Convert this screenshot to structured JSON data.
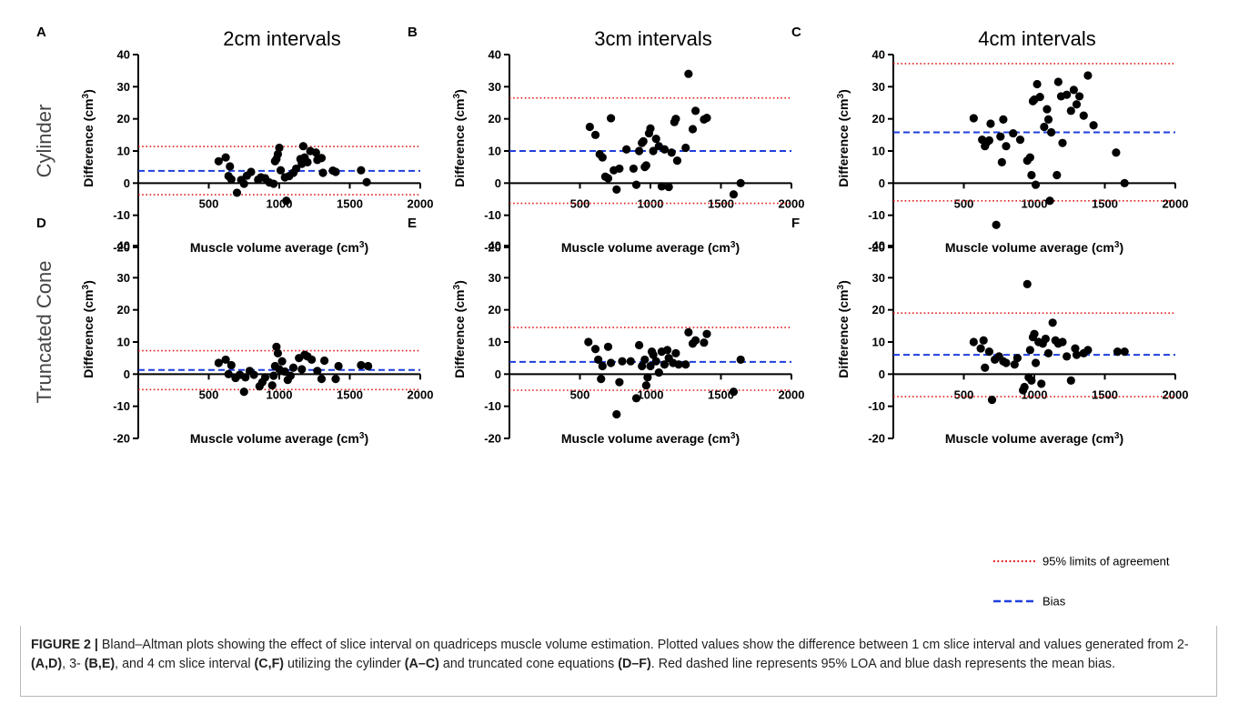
{
  "figure": {
    "column_titles": [
      "2cm intervals",
      "3cm intervals",
      "4cm intervals"
    ],
    "row_titles": [
      "Cylinder",
      "Truncated Cone"
    ],
    "legend": [
      {
        "label": "95% limits of agreement",
        "color": "#e02020",
        "style": "dotted"
      },
      {
        "label": "Bias",
        "color": "#1f3fdc",
        "style": "dashed"
      }
    ],
    "caption": {
      "label": "FIGURE 2 |",
      "parts": [
        {
          "t": " Bland–Altman plots showing the effect of slice interval on quadriceps muscle volume estimation. Plotted values show the difference between 1 cm slice interval and values generated from 2- ",
          "b": false
        },
        {
          "t": "(A,D)",
          "b": true
        },
        {
          "t": ", 3- ",
          "b": false
        },
        {
          "t": "(B,E)",
          "b": true
        },
        {
          "t": ", and 4 cm slice interval ",
          "b": false
        },
        {
          "t": "(C,F)",
          "b": true
        },
        {
          "t": " utilizing the cylinder ",
          "b": false
        },
        {
          "t": "(A–C)",
          "b": true
        },
        {
          "t": " and truncated cone equations ",
          "b": false
        },
        {
          "t": "(D–F)",
          "b": true
        },
        {
          "t": ". Red dashed line represents 95% LOA and blue dash represents the mean bias.",
          "b": false
        }
      ]
    }
  },
  "chart_data": [
    {
      "panel": "A",
      "type": "scatter",
      "xlabel": "Muscle volume average (cm",
      "xlabel_sup": "3",
      "xlabel_end": ")",
      "ylabel": "Difference (cm",
      "ylabel_sup": "3",
      "ylabel_end": ")",
      "xlim": [
        0,
        2000
      ],
      "ylim": [
        -20,
        40
      ],
      "xticks": [
        500,
        1000,
        1500,
        2000
      ],
      "yticks": [
        -20,
        -10,
        0,
        10,
        20,
        30,
        40
      ],
      "bias": 3.8,
      "loa_upper": 11.4,
      "loa_lower": -3.6,
      "points": [
        [
          570,
          6.8
        ],
        [
          620,
          8
        ],
        [
          640,
          2.2
        ],
        [
          650,
          5.2
        ],
        [
          660,
          1.2
        ],
        [
          700,
          -3
        ],
        [
          730,
          1
        ],
        [
          750,
          -0.2
        ],
        [
          770,
          2.3
        ],
        [
          800,
          3.5
        ],
        [
          850,
          1.1
        ],
        [
          870,
          1.8
        ],
        [
          900,
          1.5
        ],
        [
          930,
          0.2
        ],
        [
          960,
          -0.2
        ],
        [
          970,
          6.8
        ],
        [
          980,
          7.5
        ],
        [
          990,
          9
        ],
        [
          1000,
          11
        ],
        [
          1010,
          4
        ],
        [
          1040,
          1.8
        ],
        [
          1050,
          -5.5
        ],
        [
          1070,
          2.2
        ],
        [
          1100,
          3.2
        ],
        [
          1120,
          4.5
        ],
        [
          1150,
          7.5
        ],
        [
          1160,
          6
        ],
        [
          1170,
          11.5
        ],
        [
          1180,
          8
        ],
        [
          1200,
          6.5
        ],
        [
          1220,
          10
        ],
        [
          1260,
          9.5
        ],
        [
          1270,
          7.2
        ],
        [
          1300,
          7.8
        ],
        [
          1310,
          3.2
        ],
        [
          1380,
          3.9
        ],
        [
          1400,
          3.5
        ],
        [
          1580,
          4
        ],
        [
          1620,
          0.3
        ]
      ]
    },
    {
      "panel": "B",
      "type": "scatter",
      "xlabel": "Muscle volume average (cm",
      "xlabel_sup": "3",
      "xlabel_end": ")",
      "ylabel": "Difference (cm",
      "ylabel_sup": "3",
      "ylabel_end": ")",
      "xlim": [
        0,
        2000
      ],
      "ylim": [
        -20,
        40
      ],
      "xticks": [
        500,
        1000,
        1500,
        2000
      ],
      "yticks": [
        -20,
        -10,
        0,
        10,
        20,
        30,
        40
      ],
      "bias": 10,
      "loa_upper": 26.5,
      "loa_lower": -6.3,
      "points": [
        [
          570,
          17.5
        ],
        [
          610,
          15
        ],
        [
          640,
          9
        ],
        [
          660,
          8
        ],
        [
          680,
          2
        ],
        [
          700,
          1.5
        ],
        [
          720,
          20.2
        ],
        [
          740,
          4
        ],
        [
          760,
          -2
        ],
        [
          780,
          4.5
        ],
        [
          830,
          10.5
        ],
        [
          880,
          4.5
        ],
        [
          900,
          -0.5
        ],
        [
          920,
          10
        ],
        [
          940,
          12.5
        ],
        [
          950,
          13
        ],
        [
          960,
          5
        ],
        [
          970,
          5.5
        ],
        [
          990,
          15.5
        ],
        [
          1000,
          17
        ],
        [
          1020,
          10
        ],
        [
          1040,
          13.8
        ],
        [
          1060,
          11.5
        ],
        [
          1080,
          -1
        ],
        [
          1100,
          10.5
        ],
        [
          1130,
          -1.2
        ],
        [
          1150,
          9.5
        ],
        [
          1170,
          19
        ],
        [
          1180,
          20
        ],
        [
          1190,
          7
        ],
        [
          1250,
          11
        ],
        [
          1270,
          34
        ],
        [
          1300,
          16.8
        ],
        [
          1320,
          22.5
        ],
        [
          1380,
          19.8
        ],
        [
          1400,
          20.3
        ],
        [
          1590,
          -3.5
        ],
        [
          1640,
          0
        ]
      ]
    },
    {
      "panel": "C",
      "type": "scatter",
      "xlabel": "Muscle volume average (cm",
      "xlabel_sup": "3",
      "xlabel_end": ")",
      "ylabel": "Difference (cm",
      "ylabel_sup": "3",
      "ylabel_end": ")",
      "xlim": [
        0,
        2000
      ],
      "ylim": [
        -20,
        40
      ],
      "xticks": [
        500,
        1000,
        1500,
        2000
      ],
      "yticks": [
        -20,
        -10,
        0,
        10,
        20,
        30,
        40
      ],
      "bias": 15.8,
      "loa_upper": 37.2,
      "loa_lower": -5.5,
      "points": [
        [
          570,
          20.2
        ],
        [
          630,
          13.5
        ],
        [
          650,
          11.5
        ],
        [
          660,
          12.5
        ],
        [
          680,
          13.3
        ],
        [
          690,
          18.5
        ],
        [
          730,
          -13
        ],
        [
          760,
          14.5
        ],
        [
          770,
          6.5
        ],
        [
          780,
          19.8
        ],
        [
          800,
          11.5
        ],
        [
          850,
          15.5
        ],
        [
          900,
          13.5
        ],
        [
          950,
          7
        ],
        [
          970,
          8
        ],
        [
          980,
          2.5
        ],
        [
          990,
          25.5
        ],
        [
          1000,
          26
        ],
        [
          1010,
          -0.5
        ],
        [
          1020,
          30.8
        ],
        [
          1040,
          26.8
        ],
        [
          1070,
          17.5
        ],
        [
          1090,
          23
        ],
        [
          1100,
          19.8
        ],
        [
          1110,
          -5.5
        ],
        [
          1120,
          15.8
        ],
        [
          1160,
          2.5
        ],
        [
          1170,
          31.5
        ],
        [
          1190,
          27
        ],
        [
          1200,
          12.5
        ],
        [
          1230,
          27.5
        ],
        [
          1260,
          22.5
        ],
        [
          1280,
          29
        ],
        [
          1300,
          24.5
        ],
        [
          1320,
          27
        ],
        [
          1350,
          21
        ],
        [
          1380,
          33.5
        ],
        [
          1420,
          18
        ],
        [
          1580,
          9.5
        ],
        [
          1640,
          0
        ]
      ]
    },
    {
      "panel": "D",
      "type": "scatter",
      "xlabel": "Muscle volume average (cm",
      "xlabel_sup": "3",
      "xlabel_end": ")",
      "ylabel": "Difference (cm",
      "ylabel_sup": "3",
      "ylabel_end": ")",
      "xlim": [
        0,
        2000
      ],
      "ylim": [
        -20,
        40
      ],
      "xticks": [
        500,
        1000,
        1500,
        2000
      ],
      "yticks": [
        -20,
        -10,
        0,
        10,
        20,
        30,
        40
      ],
      "bias": 1.3,
      "loa_upper": 7.3,
      "loa_lower": -4.8,
      "points": [
        [
          570,
          3.5
        ],
        [
          620,
          4.5
        ],
        [
          640,
          0
        ],
        [
          660,
          2.8
        ],
        [
          690,
          -1.2
        ],
        [
          720,
          -0.2
        ],
        [
          750,
          -5.5
        ],
        [
          760,
          -1
        ],
        [
          790,
          1
        ],
        [
          820,
          -0.2
        ],
        [
          860,
          -3.8
        ],
        [
          880,
          -2.5
        ],
        [
          900,
          -1
        ],
        [
          950,
          -3.5
        ],
        [
          960,
          -0.5
        ],
        [
          970,
          2.5
        ],
        [
          980,
          8.5
        ],
        [
          990,
          6.5
        ],
        [
          1000,
          1.5
        ],
        [
          1020,
          4
        ],
        [
          1040,
          0.8
        ],
        [
          1060,
          -1.8
        ],
        [
          1080,
          -0.5
        ],
        [
          1100,
          2
        ],
        [
          1140,
          5
        ],
        [
          1160,
          1.5
        ],
        [
          1180,
          6
        ],
        [
          1200,
          5.5
        ],
        [
          1230,
          4.5
        ],
        [
          1270,
          1
        ],
        [
          1300,
          -1.5
        ],
        [
          1320,
          4.2
        ],
        [
          1400,
          -1.5
        ],
        [
          1420,
          2.5
        ],
        [
          1580,
          2.8
        ],
        [
          1630,
          2.5
        ]
      ]
    },
    {
      "panel": "E",
      "type": "scatter",
      "xlabel": "Muscle volume average (cm",
      "xlabel_sup": "3",
      "xlabel_end": ")",
      "ylabel": "Difference (cm",
      "ylabel_sup": "3",
      "ylabel_end": ")",
      "xlim": [
        0,
        2000
      ],
      "ylim": [
        -20,
        40
      ],
      "xticks": [
        500,
        1000,
        1500,
        2000
      ],
      "yticks": [
        -20,
        -10,
        0,
        10,
        20,
        30,
        40
      ],
      "bias": 3.8,
      "loa_upper": 14.5,
      "loa_lower": -5,
      "points": [
        [
          560,
          10
        ],
        [
          610,
          7.8
        ],
        [
          630,
          4.5
        ],
        [
          650,
          -1.5
        ],
        [
          660,
          2.5
        ],
        [
          700,
          8.5
        ],
        [
          720,
          3.5
        ],
        [
          760,
          -12.5
        ],
        [
          780,
          -2.5
        ],
        [
          800,
          4
        ],
        [
          860,
          4
        ],
        [
          900,
          -7.5
        ],
        [
          920,
          9
        ],
        [
          940,
          2.5
        ],
        [
          960,
          4.5
        ],
        [
          970,
          -3.5
        ],
        [
          980,
          -1
        ],
        [
          1000,
          2.5
        ],
        [
          1010,
          7
        ],
        [
          1020,
          6
        ],
        [
          1040,
          4
        ],
        [
          1060,
          0.5
        ],
        [
          1080,
          7
        ],
        [
          1100,
          3
        ],
        [
          1120,
          7.5
        ],
        [
          1130,
          5
        ],
        [
          1160,
          3.5
        ],
        [
          1180,
          6.5
        ],
        [
          1200,
          3
        ],
        [
          1250,
          3
        ],
        [
          1270,
          13
        ],
        [
          1300,
          9.5
        ],
        [
          1320,
          10.5
        ],
        [
          1380,
          9.8
        ],
        [
          1400,
          12.5
        ],
        [
          1590,
          -5.5
        ],
        [
          1640,
          4.5
        ]
      ]
    },
    {
      "panel": "F",
      "type": "scatter",
      "xlabel": "Muscle volume average (cm",
      "xlabel_sup": "3",
      "xlabel_end": ")",
      "ylabel": "Difference (cm",
      "ylabel_sup": "3",
      "ylabel_end": ")",
      "xlim": [
        0,
        2000
      ],
      "ylim": [
        -20,
        40
      ],
      "xticks": [
        500,
        1000,
        1500,
        2000
      ],
      "yticks": [
        -20,
        -10,
        0,
        10,
        20,
        30,
        40
      ],
      "bias": 6,
      "loa_upper": 19,
      "loa_lower": -7,
      "points": [
        [
          570,
          10
        ],
        [
          620,
          8
        ],
        [
          640,
          10.5
        ],
        [
          650,
          2
        ],
        [
          680,
          7
        ],
        [
          700,
          -8
        ],
        [
          720,
          4.5
        ],
        [
          750,
          5.5
        ],
        [
          780,
          4
        ],
        [
          800,
          3.5
        ],
        [
          860,
          3
        ],
        [
          880,
          5
        ],
        [
          920,
          -5
        ],
        [
          930,
          -4
        ],
        [
          950,
          28
        ],
        [
          960,
          -1
        ],
        [
          970,
          7.5
        ],
        [
          980,
          -2
        ],
        [
          990,
          11.5
        ],
        [
          1000,
          12.5
        ],
        [
          1010,
          3.5
        ],
        [
          1030,
          10
        ],
        [
          1050,
          -3
        ],
        [
          1060,
          9.5
        ],
        [
          1080,
          11
        ],
        [
          1100,
          6.5
        ],
        [
          1130,
          16
        ],
        [
          1150,
          10.5
        ],
        [
          1170,
          9.5
        ],
        [
          1200,
          10
        ],
        [
          1230,
          5.5
        ],
        [
          1260,
          -2
        ],
        [
          1290,
          8
        ],
        [
          1300,
          6
        ],
        [
          1350,
          6.5
        ],
        [
          1380,
          7.5
        ],
        [
          1590,
          7
        ],
        [
          1640,
          7
        ]
      ]
    }
  ]
}
